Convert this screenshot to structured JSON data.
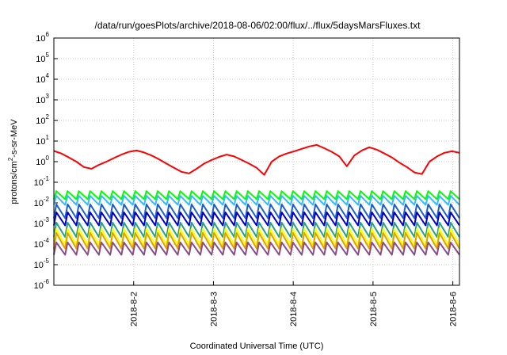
{
  "chart_data": {
    "type": "line",
    "title": "/data/run/goesPlots/archive/2018-08-06/02:00/flux/../flux/5daysMarsFluxes.txt",
    "xlabel": "Coordinated Universal Time (UTC)",
    "ylabel": "protons/cm2-s-sr-MeV",
    "ylabel_parts": {
      "pre": "protons/cm",
      "sup": "2",
      "post": "-s-sr-MeV"
    },
    "yscale": "log",
    "ylim": [
      1e-06,
      1000000.0
    ],
    "y_ticks": [
      {
        "value": 1e-06,
        "base": "10",
        "exp": "-6"
      },
      {
        "value": 1e-05,
        "base": "10",
        "exp": "-5"
      },
      {
        "value": 0.0001,
        "base": "10",
        "exp": "-4"
      },
      {
        "value": 0.001,
        "base": "10",
        "exp": "-3"
      },
      {
        "value": 0.01,
        "base": "10",
        "exp": "-2"
      },
      {
        "value": 0.1,
        "base": "10",
        "exp": "-1"
      },
      {
        "value": 1.0,
        "base": "10",
        "exp": "0"
      },
      {
        "value": 10.0,
        "base": "10",
        "exp": "1"
      },
      {
        "value": 100.0,
        "base": "10",
        "exp": "2"
      },
      {
        "value": 1000.0,
        "base": "10",
        "exp": "3"
      },
      {
        "value": 10000.0,
        "base": "10",
        "exp": "4"
      },
      {
        "value": 100000.0,
        "base": "10",
        "exp": "5"
      },
      {
        "value": 1000000.0,
        "base": "10",
        "exp": "6"
      }
    ],
    "x_ticks": [
      "2018-8-2",
      "2018-8-3",
      "2018-8-4",
      "2018-8-5",
      "2018-8-6"
    ],
    "xlim": [
      "2018-08-01T00:00",
      "2018-08-06T02:00"
    ],
    "grid": true,
    "legend": "none",
    "series": [
      {
        "color": "#ff0000",
        "values": [
          3.3,
          2.5,
          1.6,
          1.0,
          0.55,
          0.45,
          0.7,
          1.0,
          1.5,
          2.2,
          3.0,
          3.5,
          2.8,
          2.0,
          1.3,
          0.8,
          0.5,
          0.32,
          0.27,
          0.45,
          0.8,
          1.2,
          1.7,
          2.2,
          1.8,
          1.2,
          0.8,
          0.5,
          0.23,
          1.0,
          1.8,
          2.5,
          3.2,
          4.2,
          5.5,
          6.5,
          4.5,
          3.0,
          1.8,
          0.6,
          2.0,
          3.5,
          5.0,
          3.8,
          2.5,
          1.6,
          0.9,
          0.55,
          0.3,
          0.25,
          1.0,
          1.8,
          2.7,
          3.2,
          2.7
        ]
      },
      {
        "color": "#00ff00",
        "values": [
          0.015,
          0.037
        ]
      },
      {
        "color": "#33bbff",
        "values": [
          0.008,
          0.022
        ]
      },
      {
        "color": "#1e5fd0",
        "values": [
          0.0018,
          0.0085
        ]
      },
      {
        "color": "#0000c8",
        "values": [
          0.0008,
          0.0035
        ]
      },
      {
        "color": "#22a080",
        "values": [
          0.00022,
          0.0011
        ]
      },
      {
        "color": "#ffff00",
        "values": [
          9e-05,
          0.00055
        ]
      },
      {
        "color": "#e0a000",
        "values": [
          6e-05,
          0.00035
        ]
      },
      {
        "color": "#8b4a8b",
        "values": [
          3e-05,
          0.00012
        ]
      }
    ]
  }
}
